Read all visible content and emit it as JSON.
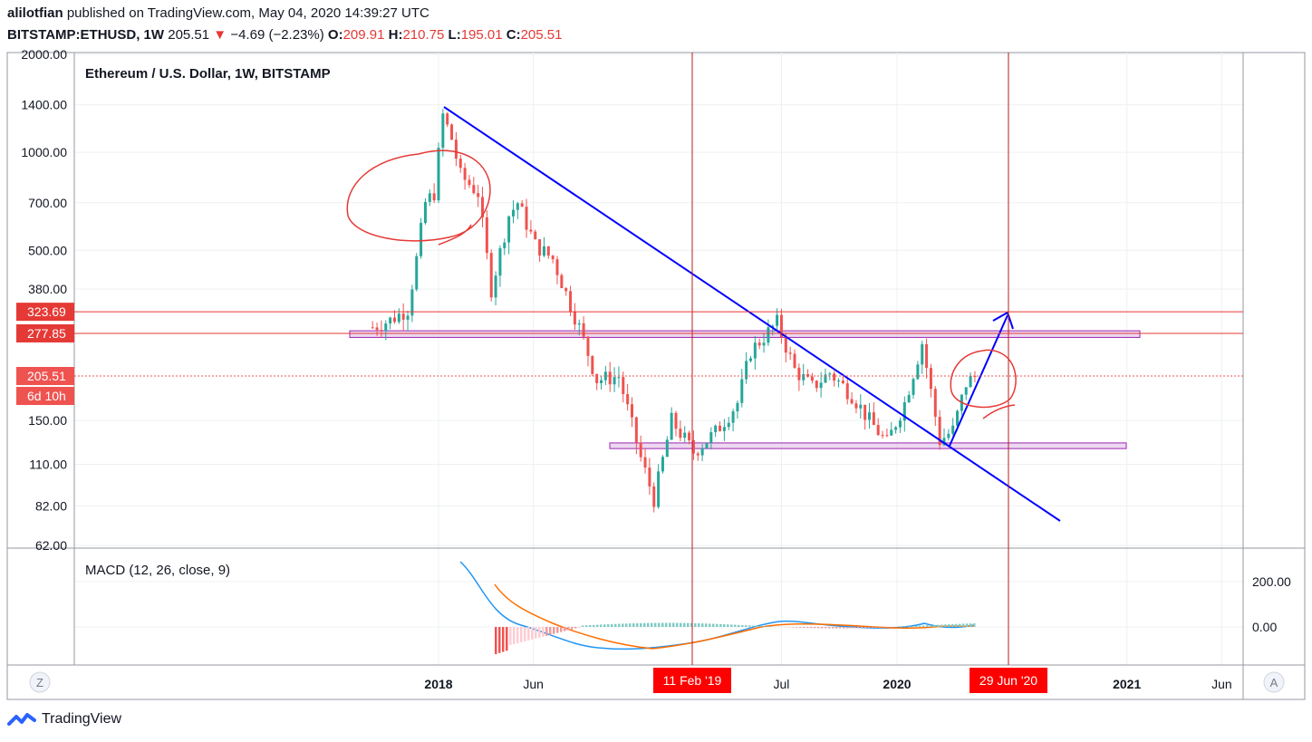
{
  "header": {
    "author": "alilotfian",
    "published_text": "published on TradingView.com, May 04, 2020 14:39:27 UTC",
    "symbol": "BITSTAMP:ETHUSD, 1W",
    "last": "205.51",
    "change_arrow": "▼",
    "change": "−4.69 (−2.23%)",
    "open_label": "O:",
    "open": "209.91",
    "high_label": "H:",
    "high": "210.75",
    "low_label": "L:",
    "low": "195.01",
    "close_label": "C:",
    "close": "205.51"
  },
  "chart_title": "Ethereum / U.S. Dollar, 1W, BITSTAMP",
  "macd_label": "MACD (12, 26, close, 9)",
  "footer": {
    "brand": "TradingView"
  },
  "scale_buttons": {
    "left": "Z",
    "right": "A"
  },
  "price_axis": {
    "ticks": [
      "2000.00",
      "1400.00",
      "1000.00",
      "700.00",
      "500.00",
      "380.00",
      "150.00",
      "110.00",
      "82.00",
      "62.00"
    ],
    "labels": [
      {
        "text": "323.69",
        "color": "#e53935"
      },
      {
        "text": "277.85",
        "color": "#e53935"
      },
      {
        "text": "205.51",
        "color": "#ef5350"
      },
      {
        "text": "6d 10h",
        "color": "#ef5350"
      }
    ]
  },
  "macd_axis": {
    "ticks": [
      "200.00",
      "0.00"
    ]
  },
  "time_axis": {
    "ticks": [
      "2018",
      "Jun",
      "Jul",
      "2020",
      "2021",
      "Jun"
    ],
    "markers": [
      "11 Feb '19",
      "29 Jun '20"
    ]
  },
  "colors": {
    "up": "#26a69a",
    "down": "#ef5350",
    "trendline": "#0000ff",
    "level": "#e53935",
    "zone_fill": "#e1bee7",
    "zone_stroke": "#9c27b0",
    "macd": "#2196f3",
    "signal": "#ff6d00"
  },
  "chart_data": {
    "type": "candlestick",
    "title": "Ethereum / U.S. Dollar, 1W, BITSTAMP",
    "symbol": "BITSTAMP:ETHUSD",
    "interval": "1W",
    "scale": "log",
    "ylim": [
      62,
      2000
    ],
    "x_range": [
      "2017-09",
      "2021-07"
    ],
    "approx_close_path": [
      {
        "date": "2017-09-18",
        "close": 290
      },
      {
        "date": "2017-10-16",
        "close": 305
      },
      {
        "date": "2017-11-13",
        "close": 330
      },
      {
        "date": "2017-11-27",
        "close": 470
      },
      {
        "date": "2017-12-11",
        "close": 700
      },
      {
        "date": "2017-12-25",
        "close": 750
      },
      {
        "date": "2018-01-08",
        "close": 1300
      },
      {
        "date": "2018-01-22",
        "close": 1100
      },
      {
        "date": "2018-02-05",
        "close": 850
      },
      {
        "date": "2018-03-05",
        "close": 750
      },
      {
        "date": "2018-03-26",
        "close": 380
      },
      {
        "date": "2018-04-23",
        "close": 640
      },
      {
        "date": "2018-05-07",
        "close": 700
      },
      {
        "date": "2018-06-04",
        "close": 520
      },
      {
        "date": "2018-07-02",
        "close": 470
      },
      {
        "date": "2018-08-13",
        "close": 290
      },
      {
        "date": "2018-09-10",
        "close": 200
      },
      {
        "date": "2018-10-15",
        "close": 205
      },
      {
        "date": "2018-11-19",
        "close": 115
      },
      {
        "date": "2018-12-10",
        "close": 86
      },
      {
        "date": "2019-01-07",
        "close": 150
      },
      {
        "date": "2019-02-11",
        "close": 120
      },
      {
        "date": "2019-03-18",
        "close": 138
      },
      {
        "date": "2019-04-22",
        "close": 170
      },
      {
        "date": "2019-05-13",
        "close": 245
      },
      {
        "date": "2019-06-24",
        "close": 300
      },
      {
        "date": "2019-07-22",
        "close": 215
      },
      {
        "date": "2019-08-19",
        "close": 190
      },
      {
        "date": "2019-09-16",
        "close": 210
      },
      {
        "date": "2019-10-21",
        "close": 180
      },
      {
        "date": "2019-11-18",
        "close": 150
      },
      {
        "date": "2019-12-16",
        "close": 128
      },
      {
        "date": "2020-01-13",
        "close": 170
      },
      {
        "date": "2020-02-10",
        "close": 260
      },
      {
        "date": "2020-03-09",
        "close": 130
      },
      {
        "date": "2020-03-30",
        "close": 140
      },
      {
        "date": "2020-04-20",
        "close": 195
      },
      {
        "date": "2020-05-04",
        "close": 205.51
      }
    ],
    "horizontal_levels": [
      323.69,
      277.85,
      205.51
    ],
    "annotations": [
      "11 Feb '19",
      "29 Jun '20"
    ],
    "macd": {
      "params": "12, 26, close, 9",
      "ylim_ticks": [
        200,
        0
      ]
    }
  }
}
